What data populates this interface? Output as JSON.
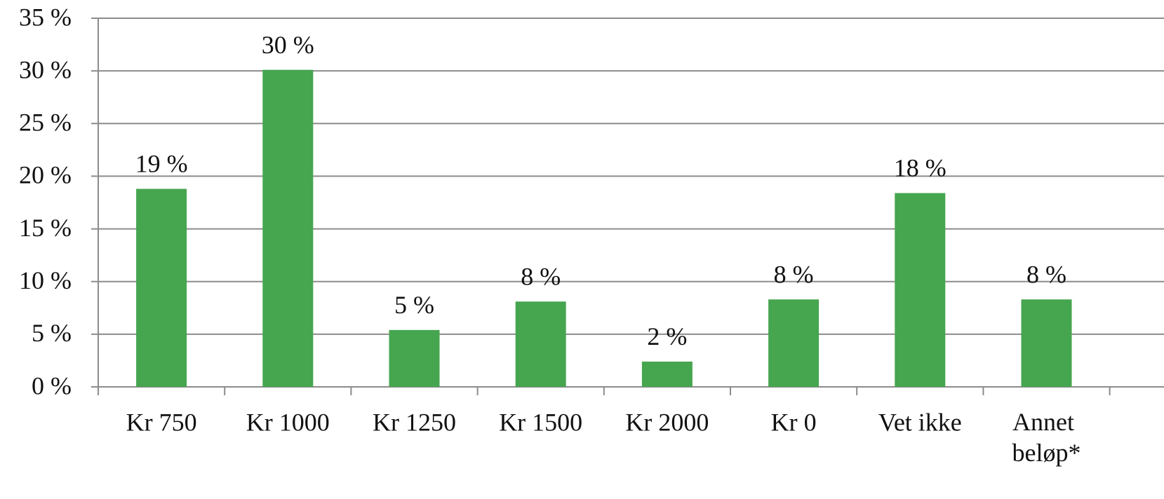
{
  "chart_data": {
    "type": "bar",
    "categories": [
      "Kr 750",
      "Kr 1000",
      "Kr 1250",
      "Kr 1500",
      "Kr 2000",
      "Kr 0",
      "Vet ikke",
      "Annet beløp*"
    ],
    "values": [
      18.8,
      30.1,
      5.4,
      8.1,
      2.4,
      8.3,
      18.4,
      8.3
    ],
    "value_labels": [
      "19 %",
      "30 %",
      "5 %",
      "8 %",
      "2 %",
      "8 %",
      "18 %",
      "8 %"
    ],
    "color": "#46a54f",
    "ylim": [
      0,
      35
    ],
    "yticks": [
      {
        "value": 0,
        "label": "0 %"
      },
      {
        "value": 5,
        "label": "5 %"
      },
      {
        "value": 10,
        "label": "10 %"
      },
      {
        "value": 15,
        "label": "15 %"
      },
      {
        "value": 20,
        "label": "20 %"
      },
      {
        "value": 25,
        "label": "25 %"
      },
      {
        "value": 30,
        "label": "30 %"
      },
      {
        "value": 35,
        "label": "35 %"
      }
    ],
    "grid": true
  }
}
